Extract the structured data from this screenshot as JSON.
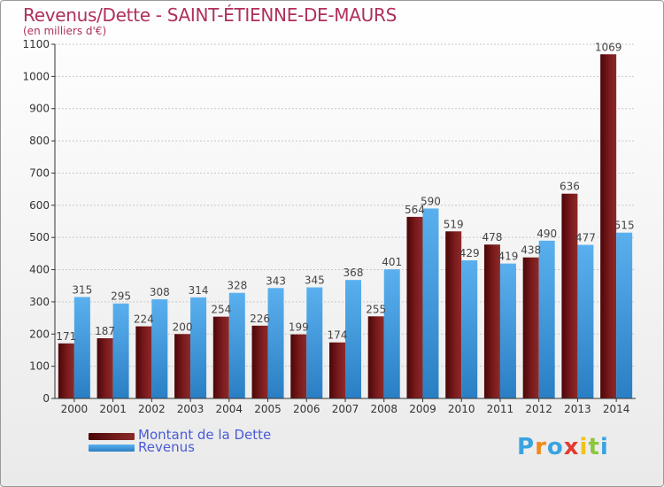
{
  "title": "Revenus/Dette - SAINT-ÉTIENNE-DE-MAURS",
  "subtitle": "(en milliers d'€)",
  "colors": {
    "dette": "#6b0f12",
    "revenus": "#3a97dd",
    "title": "#b0305a",
    "legend_text": "#4a5bd6"
  },
  "chart_data": {
    "type": "bar",
    "title": "Revenus/Dette - SAINT-ÉTIENNE-DE-MAURS",
    "ylabel": "(en milliers d'€)",
    "xlabel": "",
    "ylim": [
      0,
      1100
    ],
    "yticks": [
      0,
      100,
      200,
      300,
      400,
      500,
      600,
      700,
      800,
      900,
      1000,
      1100
    ],
    "grid": true,
    "legend": "bottom-left",
    "categories": [
      "2000",
      "2001",
      "2002",
      "2003",
      "2004",
      "2005",
      "2006",
      "2007",
      "2008",
      "2009",
      "2010",
      "2011",
      "2012",
      "2013",
      "2014"
    ],
    "series": [
      {
        "name": "Montant de la Dette",
        "values": [
          171,
          187,
          224,
          200,
          254,
          226,
          199,
          174,
          255,
          564,
          519,
          478,
          438,
          636,
          1069
        ]
      },
      {
        "name": "Revenus",
        "values": [
          315,
          295,
          308,
          314,
          328,
          343,
          345,
          368,
          401,
          590,
          429,
          419,
          490,
          477,
          515
        ]
      }
    ]
  },
  "legend": {
    "dette_label": "Montant de la Dette",
    "revenus_label": "Revenus"
  },
  "logo": {
    "letters": [
      "P",
      "r",
      "o",
      "x",
      "i",
      "t",
      "i"
    ],
    "colors": [
      "#3aa3e0",
      "#f08a1c",
      "#3aa3e0",
      "#e33b2e",
      "#f0c21c",
      "#8cc63f",
      "#3aa3e0"
    ]
  }
}
